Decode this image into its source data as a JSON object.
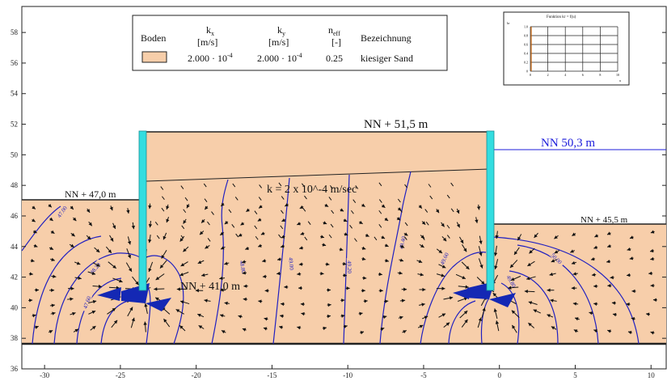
{
  "axes": {
    "x_ticks": [
      "-30",
      "-25",
      "-20",
      "-15",
      "-10",
      "-5",
      "0",
      "5",
      "10"
    ],
    "y_ticks": [
      "36",
      "38",
      "40",
      "42",
      "44",
      "46",
      "48",
      "50",
      "52",
      "54",
      "56",
      "58"
    ],
    "x_range": [
      -31.5,
      11
    ],
    "y_range": [
      36,
      59.7
    ]
  },
  "legend": {
    "col_boden": "Boden",
    "col_kx": "k",
    "col_kx_sub": "x",
    "col_kx_unit": "[m/s]",
    "col_ky": "k",
    "col_ky_sub": "y",
    "col_ky_unit": "[m/s]",
    "col_neff": "n",
    "col_neff_sub": "eff",
    "col_neff_unit": "[-]",
    "col_bez": "Bezeichnung",
    "kx_value": "2.000 · 10",
    "kx_exp": "-4",
    "ky_value": "2.000 · 10",
    "ky_exp": "-4",
    "neff_value": "0.25",
    "bez_value": "kiesiger Sand",
    "soil_color": "#f7ceaa"
  },
  "inset": {
    "title": "Funktion kr = f(u)",
    "y_axis": "kr",
    "x_axis": "u",
    "y_ticks": [
      "1.0",
      "0.8",
      "0.6",
      "0.4",
      "0.2",
      "0"
    ],
    "x_ticks": [
      "0",
      "2",
      "4",
      "6",
      "8",
      "10"
    ]
  },
  "annotations": {
    "top_level": "NN + 51,5 m",
    "water_right": "NN 50,3 m",
    "left_ground": "NN + 47,0 m",
    "right_ground": "NN + 45,5 m",
    "permeability": "k = 2 x 10^-4 m/sec",
    "base_level": "NN + 41,0 m"
  },
  "contours": [
    "47.00",
    "47.20",
    "47.40",
    "47.60",
    "48.20",
    "48.40",
    "48.60",
    "48.80",
    "49.00",
    "49.20",
    "49.40",
    "49.60",
    "49.80",
    "50.00"
  ],
  "colors": {
    "soil": "#f7ceaa",
    "wall": "#33dde0",
    "contour": "#2020c0",
    "water_line": "#1c1cdb",
    "arrow": "#111111",
    "inflow": "#1428b4"
  }
}
